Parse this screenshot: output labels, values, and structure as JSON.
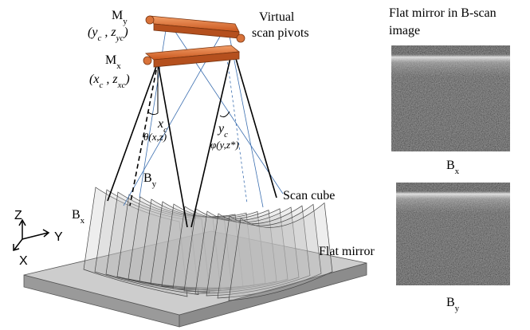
{
  "labels": {
    "m_y": [
      "M",
      "y"
    ],
    "m_y_coords": [
      "(y",
      "c",
      " , z",
      "yc",
      ")"
    ],
    "m_x": [
      "M",
      "x"
    ],
    "m_x_coords": [
      "(x",
      "c",
      " , z",
      "xc",
      ")"
    ],
    "pivots": [
      "Virtual",
      "scan pivots"
    ],
    "x_c": [
      "x",
      "c"
    ],
    "theta": [
      "θ(x,z)"
    ],
    "y_c": [
      "y",
      "c"
    ],
    "phi": [
      "φ(y,z*)"
    ],
    "b_y": [
      "B",
      "y"
    ],
    "b_x": [
      "B",
      "x"
    ],
    "scan_cube": [
      "Scan cube"
    ],
    "axis_z": [
      "Z"
    ],
    "axis_y": [
      "Y"
    ],
    "axis_x": [
      "X"
    ],
    "flat_mirror": [
      "Flat mirror"
    ]
  },
  "panel": {
    "title": [
      "Flat mirror in B-scan",
      "image"
    ],
    "images": [
      {
        "label": [
          "B",
          "x"
        ]
      },
      {
        "label": [
          "B",
          "y"
        ]
      }
    ]
  }
}
